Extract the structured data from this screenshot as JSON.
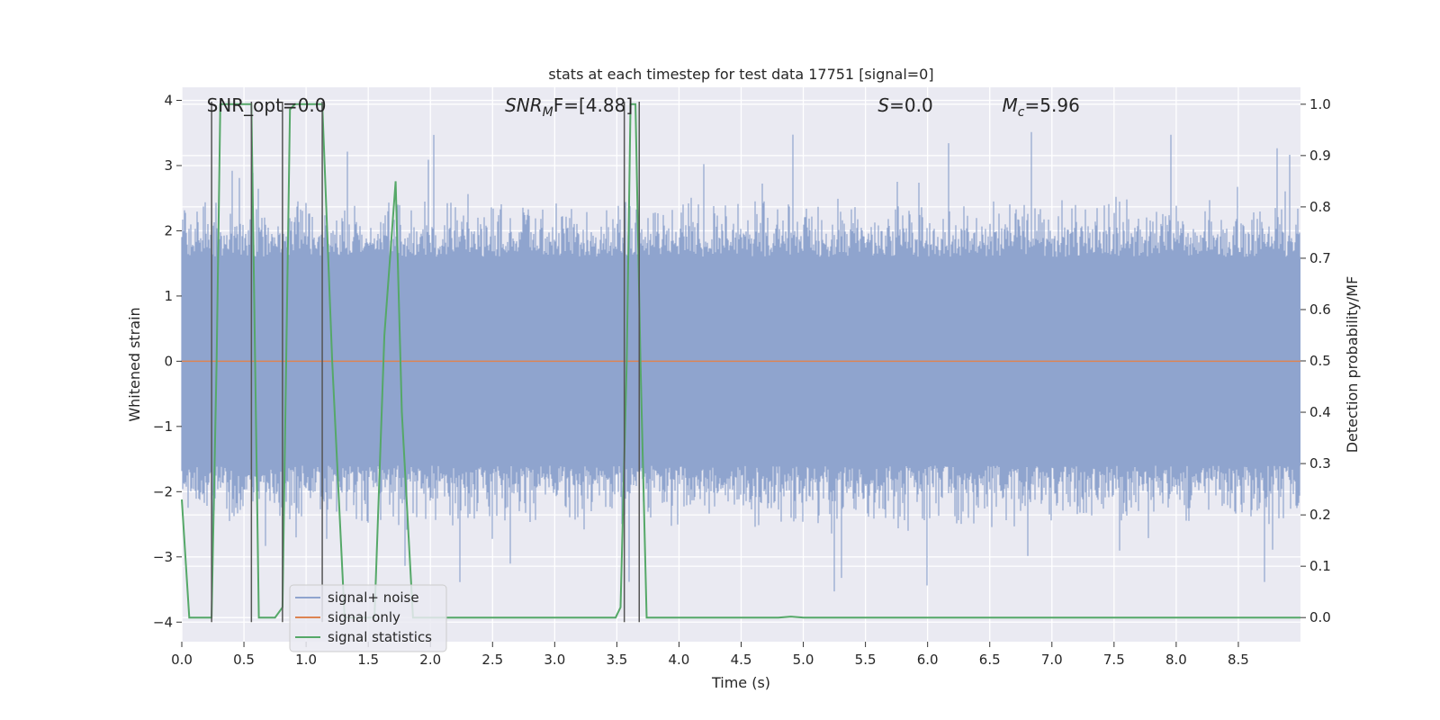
{
  "chart_data": {
    "type": "line",
    "title": "stats at each timestep for test data 17751 [signal=0]",
    "xlabel": "Time (s)",
    "ylabel_left": "Whitened strain",
    "ylabel_right": "Detection probability/MF",
    "xlim": [
      0.0,
      9.0
    ],
    "ylim_left": [
      -4.3,
      4.2
    ],
    "ylim_right": [
      -0.047,
      1.033
    ],
    "x_ticks": [
      "0.0",
      "0.5",
      "1.0",
      "1.5",
      "2.0",
      "2.5",
      "3.0",
      "3.5",
      "4.0",
      "4.5",
      "5.0",
      "5.5",
      "6.0",
      "6.5",
      "7.0",
      "7.5",
      "8.0",
      "8.5"
    ],
    "x_tick_values": [
      0.0,
      0.5,
      1.0,
      1.5,
      2.0,
      2.5,
      3.0,
      3.5,
      4.0,
      4.5,
      5.0,
      5.5,
      6.0,
      6.5,
      7.0,
      7.5,
      8.0,
      8.5
    ],
    "y_left_ticks": [
      "4",
      "3",
      "2",
      "1",
      "0",
      "−1",
      "−2",
      "−3",
      "−4"
    ],
    "y_left_tick_values": [
      4,
      3,
      2,
      1,
      0,
      -1,
      -2,
      -3,
      -4
    ],
    "y_right_ticks": [
      "1.0",
      "0.9",
      "0.8",
      "0.7",
      "0.6",
      "0.5",
      "0.4",
      "0.3",
      "0.2",
      "0.1",
      "0.0"
    ],
    "y_right_tick_values": [
      1.0,
      0.9,
      0.8,
      0.7,
      0.6,
      0.5,
      0.4,
      0.3,
      0.2,
      0.1,
      0.0
    ],
    "grid": true,
    "annotations": {
      "snr_opt": "SNR_opt=0.0",
      "snr_mf_label": "SNR",
      "snr_mf_sub": "M",
      "snr_mf_rest": "F=[4.88]",
      "s_label": "S",
      "s_value": "=0.0",
      "mc_label": "M",
      "mc_sub": "c",
      "mc_value": "=5.96"
    },
    "annotation_positions_x": [
      0.2,
      2.6,
      5.6,
      6.6
    ],
    "vertical_lines_x": [
      0.24,
      0.56,
      0.81,
      1.13,
      3.56,
      3.68
    ],
    "series": [
      {
        "name": "signal+ noise",
        "color": "#8fa4ce",
        "kind": "noise",
        "envelope": {
          "core": 1.6,
          "typical_peak": 2.6,
          "max_peak": 3.6
        }
      },
      {
        "name": "signal only",
        "color": "#dd8452",
        "x": [
          0.0,
          9.0
        ],
        "y": [
          0.0,
          0.0
        ]
      },
      {
        "name": "signal statistics",
        "color": "#55a868",
        "axis": "right",
        "x": [
          0.0,
          0.06,
          0.24,
          0.28,
          0.31,
          0.56,
          0.62,
          0.75,
          0.81,
          0.87,
          0.91,
          1.13,
          1.21,
          1.31,
          1.55,
          1.63,
          1.72,
          1.77,
          1.86,
          1.96,
          3.49,
          3.53,
          3.58,
          3.61,
          3.65,
          3.69,
          3.74,
          3.8,
          4.8,
          4.9,
          5.0,
          8.9,
          9.0
        ],
        "y": [
          0.23,
          0.0,
          0.0,
          0.5,
          1.0,
          1.0,
          0.0,
          0.0,
          0.02,
          0.99,
          1.0,
          1.0,
          0.5,
          0.0,
          0.0,
          0.55,
          0.85,
          0.4,
          0.0,
          0.0,
          0.0,
          0.02,
          0.5,
          1.0,
          1.0,
          0.5,
          0.0,
          0.0,
          0.0,
          0.002,
          0.0,
          0.0,
          0.0
        ]
      }
    ],
    "legend": {
      "location": "lower-left",
      "entries": [
        "signal+ noise",
        "signal only",
        "signal statistics"
      ]
    }
  },
  "colors": {
    "background": "#eaeaf2",
    "grid": "#ffffff",
    "noise": "#8fa4ce",
    "signal_only": "#dd8452",
    "statistics": "#55a868",
    "vline": "#555555"
  }
}
